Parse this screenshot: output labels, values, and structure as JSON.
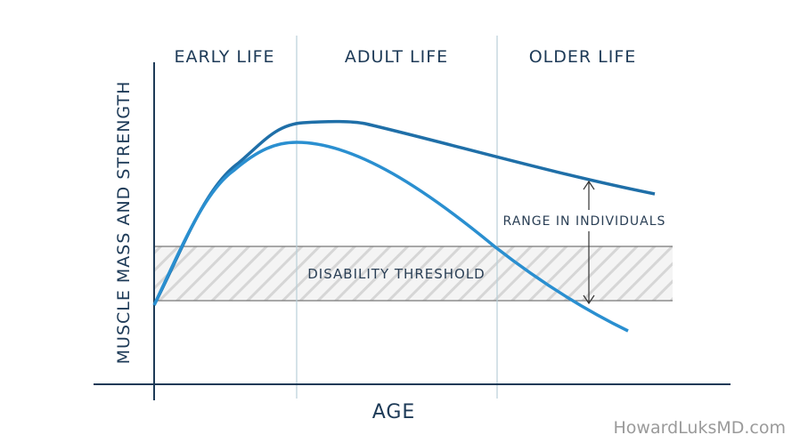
{
  "stages": [
    "EARLY LIFE",
    "ADULT LIFE",
    "OLDER LIFE"
  ],
  "axes": {
    "y_label": "MUSCLE MASS AND STRENGTH",
    "x_label": "AGE"
  },
  "annotations": {
    "range": "RANGE IN INDIVIDUALS",
    "threshold": "DISABILITY THRESHOLD"
  },
  "watermark": "HowardLuksMD.com"
}
